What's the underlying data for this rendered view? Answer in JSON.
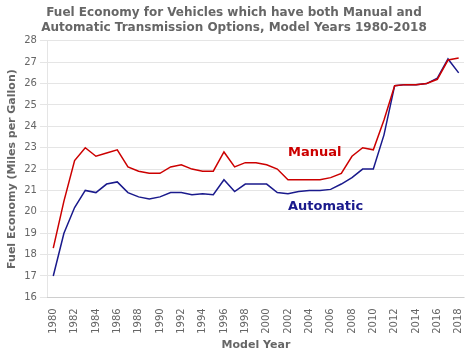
{
  "chart_data": {
    "type": "line",
    "title": "Fuel Economy for Vehicles which have both Manual and\nAutomatic Transmission Options, Model Years 1980-2018",
    "xlabel": "Model Year",
    "ylabel": "Fuel Economy (Miles per Gallon)",
    "x": [
      1980,
      1981,
      1982,
      1983,
      1984,
      1985,
      1986,
      1987,
      1988,
      1989,
      1990,
      1991,
      1992,
      1993,
      1994,
      1995,
      1996,
      1997,
      1998,
      1999,
      2000,
      2001,
      2002,
      2003,
      2004,
      2005,
      2006,
      2007,
      2008,
      2009,
      2010,
      2011,
      2012,
      2013,
      2014,
      2015,
      2016,
      2017,
      2018
    ],
    "series": [
      {
        "color": "#cc0000",
        "values": [
          18.3,
          20.5,
          22.4,
          23.0,
          22.6,
          22.75,
          22.9,
          22.1,
          21.9,
          21.8,
          21.8,
          22.1,
          22.2,
          22.0,
          21.9,
          21.9,
          22.8,
          22.1,
          22.3,
          22.3,
          22.2,
          22.0,
          21.5,
          21.5,
          21.5,
          21.5,
          21.6,
          21.8,
          22.6,
          23.0,
          22.9,
          24.3,
          25.9,
          25.95,
          25.95,
          26.0,
          26.2,
          27.1,
          27.2
        ]
      },
      {
        "color": "#1a1a8c",
        "values": [
          17.0,
          19.0,
          20.2,
          21.0,
          20.9,
          21.3,
          21.4,
          20.9,
          20.7,
          20.6,
          20.7,
          20.9,
          20.9,
          20.8,
          20.85,
          20.8,
          21.5,
          20.95,
          21.3,
          21.3,
          21.3,
          20.9,
          20.85,
          20.95,
          21.0,
          21.0,
          21.05,
          21.3,
          21.6,
          22.0,
          22.0,
          23.6,
          25.9,
          25.95,
          25.95,
          26.0,
          26.25,
          27.15,
          26.5
        ]
      }
    ],
    "annotations": [
      {
        "text": "Manual",
        "x": 2002,
        "y": 22.6,
        "color": "#cc0000"
      },
      {
        "text": "Automatic",
        "x": 2002,
        "y": 20.1,
        "color": "#1a1a8c"
      }
    ],
    "xlim": [
      1979.5,
      2018.5
    ],
    "xticks": [
      1980,
      1982,
      1984,
      1986,
      1988,
      1990,
      1992,
      1994,
      1996,
      1998,
      2000,
      2002,
      2004,
      2006,
      2008,
      2010,
      2012,
      2014,
      2016,
      2018
    ],
    "ylim": [
      16,
      28
    ],
    "yticks": [
      16,
      17,
      18,
      19,
      20,
      21,
      22,
      23,
      24,
      25,
      26,
      27,
      28
    ],
    "grid": "y"
  }
}
